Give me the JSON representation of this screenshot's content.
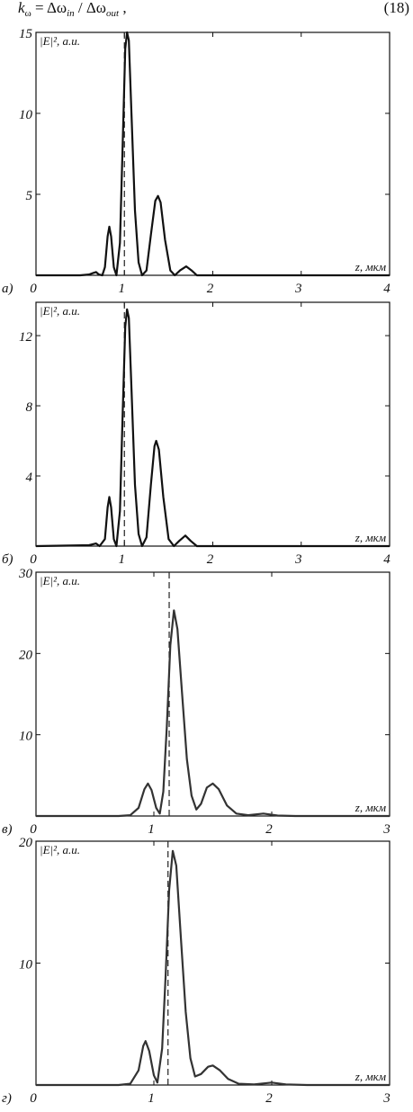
{
  "equation": {
    "lhs": "k",
    "lhs_sub": "ω",
    "eq": " = Δω",
    "sub_in": "in",
    "div": " / Δω",
    "sub_out": "out",
    "tail": " ,",
    "number": "(18)"
  },
  "chart_data": [
    {
      "type": "line",
      "panel_label": "а)",
      "ylabel": "|E|², a.u.",
      "xlabel": "z, мкм",
      "color": "#111111",
      "vline": 1.0,
      "xlim": [
        0,
        4
      ],
      "ylim": [
        0,
        15
      ],
      "xticks": [
        0,
        1,
        2,
        3,
        4
      ],
      "yticks": [
        5,
        10,
        15
      ],
      "x": [
        0,
        0.5,
        0.6,
        0.65,
        0.68,
        0.71,
        0.75,
        0.78,
        0.81,
        0.83,
        0.85,
        0.88,
        0.91,
        0.95,
        0.98,
        1.01,
        1.03,
        1.05,
        1.08,
        1.12,
        1.16,
        1.2,
        1.25,
        1.3,
        1.35,
        1.38,
        1.41,
        1.46,
        1.52,
        1.57,
        1.63,
        1.7,
        1.76,
        1.82,
        2.5,
        4
      ],
      "values": [
        0,
        0,
        0.05,
        0.15,
        0.2,
        0.05,
        0,
        0.5,
        2.4,
        3.0,
        2.4,
        0.5,
        0,
        2,
        8,
        14,
        15,
        14.5,
        10,
        4,
        0.8,
        0,
        0.3,
        2.5,
        4.6,
        4.9,
        4.5,
        2.2,
        0.3,
        0,
        0.3,
        0.55,
        0.3,
        0,
        0,
        0
      ]
    },
    {
      "type": "line",
      "panel_label": "б)",
      "ylabel": "|E|², a.u.",
      "xlabel": "z, мкм",
      "color": "#111111",
      "vline": 1.0,
      "xlim": [
        0,
        4
      ],
      "ylim": [
        0,
        13.9
      ],
      "xticks": [
        0,
        1,
        2,
        3,
        4
      ],
      "yticks": [
        4,
        8,
        12
      ],
      "x": [
        0,
        0.6,
        0.68,
        0.72,
        0.78,
        0.81,
        0.83,
        0.85,
        0.88,
        0.91,
        0.95,
        0.98,
        1.01,
        1.03,
        1.05,
        1.08,
        1.12,
        1.16,
        1.2,
        1.25,
        1.3,
        1.34,
        1.36,
        1.39,
        1.44,
        1.5,
        1.56,
        1.62,
        1.69,
        1.75,
        1.82,
        2.5,
        4
      ],
      "values": [
        0,
        0.05,
        0.15,
        0,
        0.4,
        2.2,
        2.8,
        2.2,
        0.4,
        0,
        2,
        7.5,
        12.5,
        13.5,
        13,
        9,
        3.5,
        0.7,
        0,
        0.5,
        3.5,
        5.7,
        6.0,
        5.5,
        2.8,
        0.4,
        0,
        0.3,
        0.6,
        0.3,
        0,
        0,
        0
      ]
    },
    {
      "type": "line",
      "panel_label": "в)",
      "ylabel": "|E|², a.u.",
      "xlabel": "z, мкм",
      "color": "#333333",
      "vline": 1.13,
      "xlim": [
        0,
        3
      ],
      "ylim": [
        0,
        30
      ],
      "xticks": [
        0,
        1,
        2,
        3
      ],
      "yticks": [
        10,
        20,
        30
      ],
      "x": [
        0,
        0.7,
        0.8,
        0.87,
        0.92,
        0.95,
        0.98,
        1.02,
        1.05,
        1.08,
        1.11,
        1.14,
        1.17,
        1.2,
        1.24,
        1.28,
        1.32,
        1.36,
        1.4,
        1.45,
        1.5,
        1.55,
        1.62,
        1.7,
        1.8,
        1.93,
        2.05,
        2.2,
        3
      ],
      "values": [
        0,
        0,
        0.1,
        1,
        3.3,
        4.0,
        3.2,
        1,
        0.3,
        3,
        11,
        21,
        25.3,
        23,
        15,
        7,
        2.5,
        0.8,
        1.5,
        3.5,
        4.0,
        3.3,
        1.3,
        0.3,
        0.1,
        0.3,
        0.05,
        0,
        0
      ]
    },
    {
      "type": "line",
      "panel_label": "г)",
      "ylabel": "|E|², a.u.",
      "xlabel": "z, мкм",
      "color": "#333333",
      "vline": 1.12,
      "xlim": [
        0,
        3
      ],
      "ylim": [
        0,
        20
      ],
      "xticks": [
        0,
        1,
        2,
        3
      ],
      "yticks": [
        10,
        20
      ],
      "x": [
        0,
        0.7,
        0.8,
        0.87,
        0.91,
        0.93,
        0.96,
        1.0,
        1.03,
        1.07,
        1.1,
        1.13,
        1.16,
        1.19,
        1.23,
        1.27,
        1.31,
        1.35,
        1.4,
        1.46,
        1.5,
        1.56,
        1.63,
        1.72,
        1.85,
        2.0,
        2.12,
        2.3,
        3
      ],
      "values": [
        0,
        0,
        0.1,
        1.2,
        3.2,
        3.6,
        2.8,
        0.8,
        0.2,
        3,
        9,
        16,
        19.2,
        18,
        12,
        6,
        2.2,
        0.7,
        0.9,
        1.5,
        1.6,
        1.2,
        0.5,
        0.1,
        0.05,
        0.2,
        0.05,
        0,
        0
      ]
    }
  ]
}
